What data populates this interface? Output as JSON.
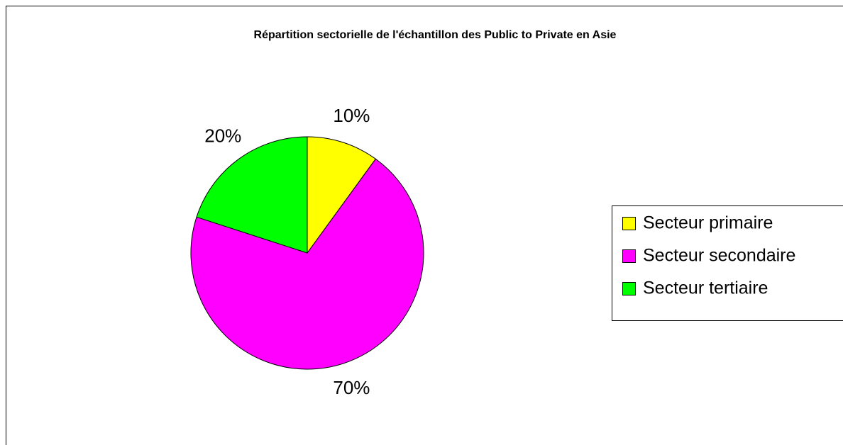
{
  "chart_data": {
    "type": "pie",
    "title": "Répartition sectorielle de l'échantillon des Public to Private en Asie",
    "categories": [
      "Secteur primaire",
      "Secteur secondaire",
      "Secteur tertiaire"
    ],
    "values": [
      10,
      70,
      20
    ],
    "value_labels": [
      "10%",
      "70%",
      "20%"
    ],
    "colors": [
      "#ffff00",
      "#ff00ff",
      "#00ff00"
    ],
    "legend": "right"
  }
}
